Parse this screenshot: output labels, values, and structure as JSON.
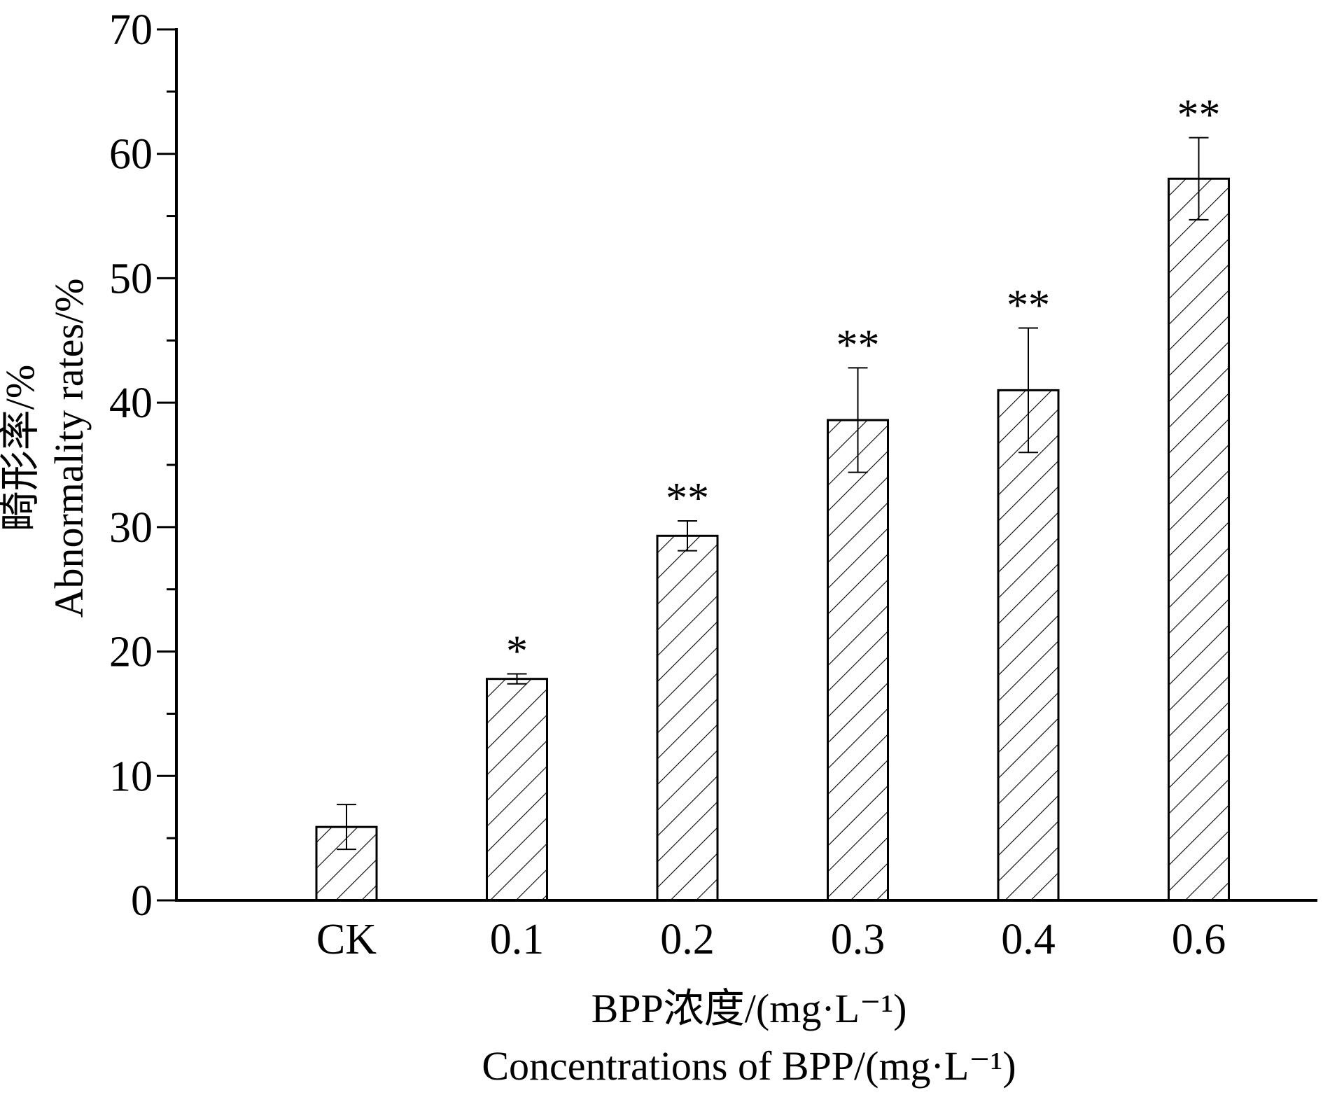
{
  "chart_data": {
    "type": "bar",
    "title": "",
    "categories": [
      "CK",
      "0.1",
      "0.2",
      "0.3",
      "0.4",
      "0.6"
    ],
    "values": [
      5.9,
      17.8,
      29.3,
      38.6,
      41.0,
      58.0
    ],
    "errors": [
      1.8,
      0.4,
      1.2,
      4.2,
      5.0,
      3.3
    ],
    "significance": [
      "",
      "*",
      "**",
      "**",
      "**",
      "**"
    ],
    "ylim": [
      0,
      70
    ],
    "yticks": [
      "0",
      "10",
      "20",
      "30",
      "40",
      "50",
      "60",
      "70"
    ],
    "ylabel_cn": "畸形率/%",
    "ylabel_en": "Abnormality rates/%",
    "xlabel_cn": "BPP浓度/(mg·L⁻¹)",
    "xlabel_en": "Concentrations of BPP/(mg·L⁻¹)",
    "bar_fill": "hatched",
    "grid": false,
    "legend": "none"
  }
}
